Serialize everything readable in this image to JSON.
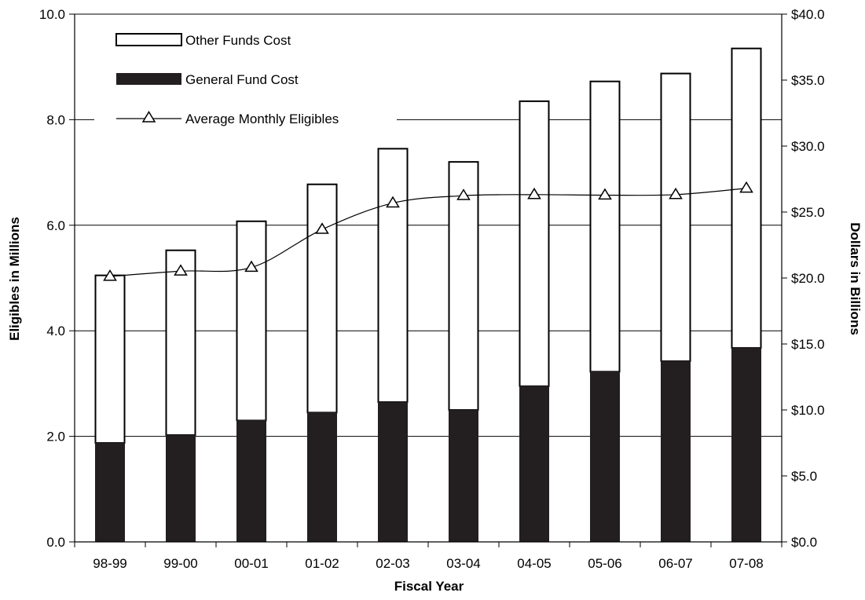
{
  "chart_data": {
    "type": "bar",
    "xlabel": "Fiscal Year",
    "ylabel_left": "Eligibles in Millions",
    "ylabel_right": "Dollars in Billions",
    "categories": [
      "98-99",
      "99-00",
      "00-01",
      "01-02",
      "02-03",
      "03-04",
      "04-05",
      "05-06",
      "06-07",
      "07-08"
    ],
    "stacked": true,
    "series": [
      {
        "name": "General Fund Cost",
        "axis": "right",
        "kind": "bar",
        "color": "#231f20",
        "values": [
          7.5,
          8.1,
          9.2,
          9.8,
          10.6,
          10.0,
          11.8,
          12.9,
          13.7,
          14.7
        ]
      },
      {
        "name": "Other Funds Cost",
        "axis": "right",
        "kind": "bar",
        "color": "#ffffff",
        "values": [
          12.7,
          14.0,
          15.1,
          17.3,
          19.2,
          18.8,
          21.6,
          22.0,
          21.8,
          22.7
        ]
      },
      {
        "name": "Average Monthly Eligibles",
        "axis": "left",
        "kind": "line",
        "marker": "triangle",
        "values": [
          5.03,
          5.13,
          5.2,
          5.92,
          6.42,
          6.56,
          6.58,
          6.57,
          6.58,
          6.7
        ]
      }
    ],
    "ylim_left": [
      0,
      10
    ],
    "ylim_right": [
      0,
      40
    ],
    "left_ticks": [
      "0.0",
      "2.0",
      "4.0",
      "6.0",
      "8.0",
      "10.0"
    ],
    "right_ticks": [
      "$0.0",
      "$5.0",
      "$10.0",
      "$15.0",
      "$20.0",
      "$25.0",
      "$30.0",
      "$35.0",
      "$40.0"
    ],
    "grid": "horizontal at left-axis ticks",
    "legend_position": "top-left"
  }
}
